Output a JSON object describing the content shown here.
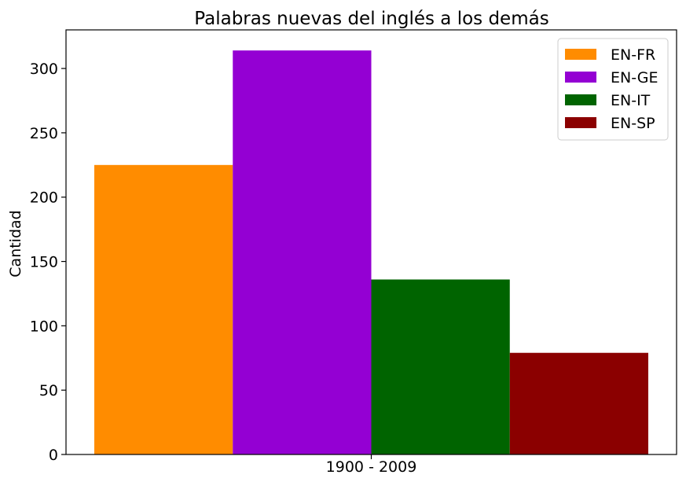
{
  "chart_data": {
    "type": "bar",
    "title": "Palabras nuevas del inglés a los demás",
    "xlabel": "",
    "ylabel": "Cantidad",
    "categories": [
      "1900 - 2009"
    ],
    "series": [
      {
        "name": "EN-FR",
        "values": [
          225
        ],
        "color": "#ff8c00"
      },
      {
        "name": "EN-GE",
        "values": [
          314
        ],
        "color": "#9400d3"
      },
      {
        "name": "EN-IT",
        "values": [
          136
        ],
        "color": "#006400"
      },
      {
        "name": "EN-SP",
        "values": [
          79
        ],
        "color": "#8b0000"
      }
    ],
    "ylim": [
      0,
      330
    ],
    "yticks": [
      0,
      50,
      100,
      150,
      200,
      250,
      300
    ],
    "grid": false,
    "legend_position": "top-right"
  }
}
